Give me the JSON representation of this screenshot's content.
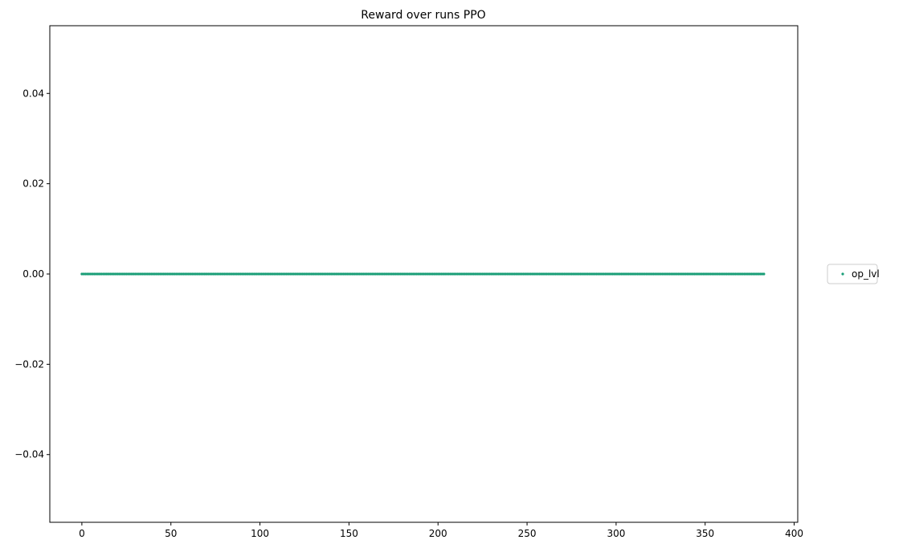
{
  "chart_data": {
    "type": "scatter",
    "title": "Reward over runs PPO",
    "xlabel": "",
    "ylabel": "",
    "xlim": [
      -18,
      402
    ],
    "ylim": [
      -0.055,
      0.055
    ],
    "xticks": [
      0,
      50,
      100,
      150,
      200,
      250,
      300,
      350,
      400
    ],
    "xtick_labels": [
      "0",
      "50",
      "100",
      "150",
      "200",
      "250",
      "300",
      "350",
      "400"
    ],
    "yticks": [
      0.04,
      0.02,
      0.0,
      -0.02,
      -0.04
    ],
    "ytick_labels": [
      "0.04",
      "0.02",
      "0.00",
      "−0.02",
      "−0.04"
    ],
    "grid": false,
    "legend_position": "outside-right",
    "series": [
      {
        "name": "op_lvl",
        "color": "#1a9e77",
        "x_start": 0,
        "x_end": 383,
        "x_step": 1,
        "y_constant": 0.0
      }
    ]
  }
}
